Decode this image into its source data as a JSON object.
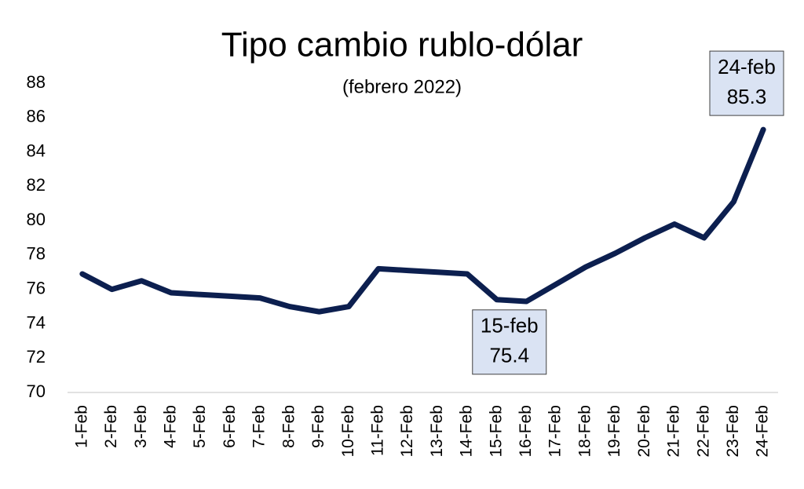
{
  "chart_data": {
    "type": "line",
    "title": "Tipo cambio rublo-dólar",
    "subtitle": "(febrero 2022)",
    "categories": [
      "1-Feb",
      "2-Feb",
      "3-Feb",
      "4-Feb",
      "5-Feb",
      "6-Feb",
      "7-Feb",
      "8-Feb",
      "9-Feb",
      "10-Feb",
      "11-Feb",
      "12-Feb",
      "13-Feb",
      "14-Feb",
      "15-Feb",
      "16-Feb",
      "17-Feb",
      "18-Feb",
      "19-Feb",
      "20-Feb",
      "21-Feb",
      "22-Feb",
      "23-Feb",
      "24-Feb"
    ],
    "values": [
      76.9,
      76.0,
      76.5,
      75.8,
      75.7,
      75.6,
      75.5,
      75.0,
      74.7,
      75.0,
      77.2,
      77.1,
      77.0,
      76.9,
      75.4,
      75.3,
      76.3,
      77.3,
      78.1,
      79.0,
      79.8,
      79.0,
      81.1,
      85.3
    ],
    "color": "#0c1f4f",
    "ylim": [
      70,
      88
    ],
    "yticks": [
      70,
      72,
      74,
      76,
      78,
      80,
      82,
      84,
      86,
      88
    ],
    "grid": false,
    "annotations": [
      {
        "category": "15-Feb",
        "label": "15-feb",
        "value": 75.4
      },
      {
        "category": "24-Feb",
        "label": "24-feb",
        "value": 85.3
      }
    ]
  }
}
